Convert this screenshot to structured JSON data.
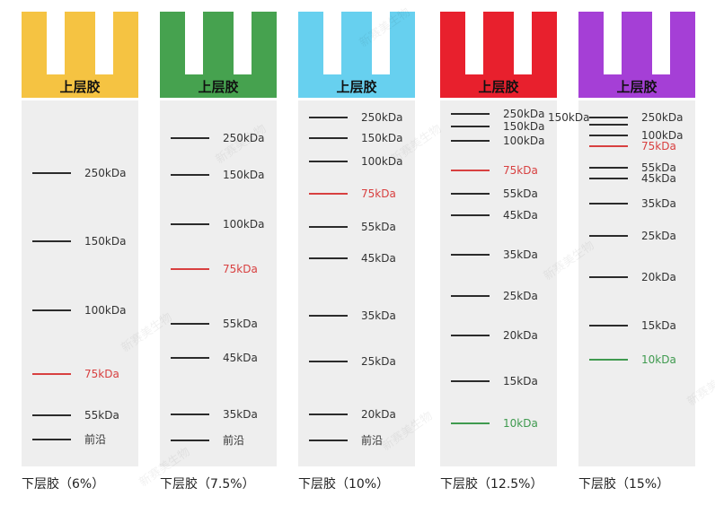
{
  "columns": [
    {
      "id": "gel-6",
      "comb_color": "#f5c342",
      "top_label": "上层胶",
      "bottom_label": "下层胶（6%）",
      "bands": [
        {
          "label": "250kDa",
          "color": "dark"
        },
        {
          "label": "150kDa",
          "color": "dark"
        },
        {
          "label": "100kDa",
          "color": "dark"
        },
        {
          "label": "75kDa",
          "color": "red"
        },
        {
          "label": "55kDa",
          "color": "dark"
        },
        {
          "label": "前沿",
          "color": "dark"
        }
      ]
    },
    {
      "id": "gel-7-5",
      "comb_color": "#46a24f",
      "top_label": "上层胶",
      "bottom_label": "下层胶（7.5%）",
      "bands": [
        {
          "label": "250kDa",
          "color": "dark"
        },
        {
          "label": "150kDa",
          "color": "dark"
        },
        {
          "label": "100kDa",
          "color": "dark"
        },
        {
          "label": "75kDa",
          "color": "red"
        },
        {
          "label": "55kDa",
          "color": "dark"
        },
        {
          "label": "45kDa",
          "color": "dark"
        },
        {
          "label": "35kDa",
          "color": "dark"
        },
        {
          "label": "前沿",
          "color": "dark"
        }
      ]
    },
    {
      "id": "gel-10",
      "comb_color": "#67d0ef",
      "top_label": "上层胶",
      "bottom_label": "下层胶（10%）",
      "bands": [
        {
          "label": "250kDa",
          "color": "dark"
        },
        {
          "label": "150kDa",
          "color": "dark"
        },
        {
          "label": "100kDa",
          "color": "dark"
        },
        {
          "label": "75kDa",
          "color": "red"
        },
        {
          "label": "55kDa",
          "color": "dark"
        },
        {
          "label": "45kDa",
          "color": "dark"
        },
        {
          "label": "35kDa",
          "color": "dark"
        },
        {
          "label": "25kDa",
          "color": "dark"
        },
        {
          "label": "20kDa",
          "color": "dark"
        },
        {
          "label": "前沿",
          "color": "dark"
        }
      ]
    },
    {
      "id": "gel-12-5",
      "comb_color": "#e8202d",
      "top_label": "上层胶",
      "bottom_label": "下层胶（12.5%）",
      "bands": [
        {
          "label": "250kDa",
          "color": "dark"
        },
        {
          "label": "150kDa",
          "color": "dark"
        },
        {
          "label": "100kDa",
          "color": "dark"
        },
        {
          "label": "75kDa",
          "color": "red"
        },
        {
          "label": "55kDa",
          "color": "dark"
        },
        {
          "label": "45kDa",
          "color": "dark"
        },
        {
          "label": "35kDa",
          "color": "dark"
        },
        {
          "label": "25kDa",
          "color": "dark"
        },
        {
          "label": "20kDa",
          "color": "dark"
        },
        {
          "label": "15kDa",
          "color": "dark"
        },
        {
          "label": "10kDa",
          "color": "green"
        }
      ]
    },
    {
      "id": "gel-15",
      "comb_color": "#a53fd6",
      "top_label": "上层胶",
      "bottom_label": "下层胶（15%）",
      "outside_label": "150kDa",
      "bands": [
        {
          "label": "250kDa",
          "color": "dark"
        },
        {
          "label": "",
          "color": "dark"
        },
        {
          "label": "100kDa",
          "color": "dark"
        },
        {
          "label": "75kDa",
          "color": "red"
        },
        {
          "label": "55kDa",
          "color": "dark"
        },
        {
          "label": "45kDa",
          "color": "dark"
        },
        {
          "label": "35kDa",
          "color": "dark"
        },
        {
          "label": "25kDa",
          "color": "dark"
        },
        {
          "label": "20kDa",
          "color": "dark"
        },
        {
          "label": "15kDa",
          "color": "dark"
        },
        {
          "label": "10kDa",
          "color": "green"
        }
      ]
    }
  ],
  "watermark": "新赛美生物",
  "colors": {
    "dark_band": "#2b2b2b",
    "red_band": "#d84040",
    "green_band": "#3f9a4f",
    "gel_bg": "#eeeeee"
  }
}
